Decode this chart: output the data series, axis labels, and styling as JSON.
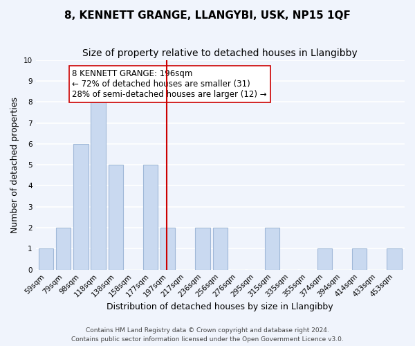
{
  "title": "8, KENNETT GRANGE, LLANGYBI, USK, NP15 1QF",
  "subtitle": "Size of property relative to detached houses in Llangibby",
  "xlabel": "Distribution of detached houses by size in Llangibby",
  "ylabel": "Number of detached properties",
  "bin_labels": [
    "59sqm",
    "79sqm",
    "98sqm",
    "118sqm",
    "138sqm",
    "158sqm",
    "177sqm",
    "197sqm",
    "217sqm",
    "236sqm",
    "256sqm",
    "276sqm",
    "295sqm",
    "315sqm",
    "335sqm",
    "355sqm",
    "374sqm",
    "394sqm",
    "414sqm",
    "433sqm",
    "453sqm"
  ],
  "bar_heights": [
    1,
    2,
    6,
    8,
    5,
    0,
    5,
    2,
    0,
    2,
    2,
    0,
    0,
    2,
    0,
    0,
    1,
    0,
    1,
    0,
    1
  ],
  "bar_color": "#c9d9f0",
  "bar_edge_color": "#a0b8d8",
  "reference_line_x": 6.925,
  "reference_line_color": "#cc0000",
  "annotation_text": "8 KENNETT GRANGE: 196sqm\n← 72% of detached houses are smaller (31)\n28% of semi-detached houses are larger (12) →",
  "annotation_box_color": "white",
  "annotation_box_edge_color": "#cc0000",
  "ylim": [
    0,
    10
  ],
  "yticks": [
    0,
    1,
    2,
    3,
    4,
    5,
    6,
    7,
    8,
    9,
    10
  ],
  "footer_line1": "Contains HM Land Registry data © Crown copyright and database right 2024.",
  "footer_line2": "Contains public sector information licensed under the Open Government Licence v3.0.",
  "background_color": "#f0f4fc",
  "grid_color": "white",
  "title_fontsize": 11,
  "subtitle_fontsize": 10,
  "axis_label_fontsize": 9,
  "tick_fontsize": 7.5,
  "annotation_fontsize": 8.5,
  "footer_fontsize": 6.5
}
